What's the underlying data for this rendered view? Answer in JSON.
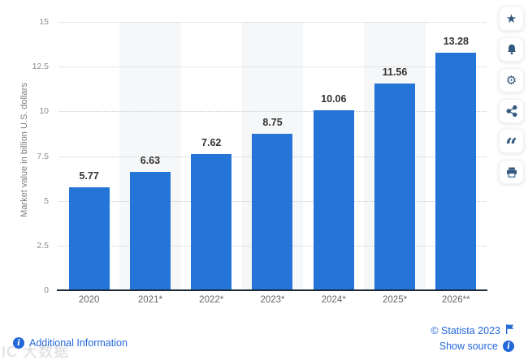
{
  "chart_data": {
    "type": "bar",
    "title": "",
    "xlabel": "",
    "ylabel": "Market value in billion U.S. dollars",
    "categories": [
      "2020",
      "2021*",
      "2022*",
      "2023*",
      "2024*",
      "2025*",
      "2026**"
    ],
    "values": [
      5.77,
      6.63,
      7.62,
      8.75,
      10.06,
      11.56,
      13.28
    ],
    "value_labels": [
      "5.77",
      "6.63",
      "7.62",
      "8.75",
      "10.06",
      "11.56",
      "13.28"
    ],
    "ylim": [
      0,
      15
    ],
    "yticks": [
      0,
      2.5,
      5,
      7.5,
      10,
      12.5,
      15
    ],
    "ytick_labels": [
      "0",
      "2.5",
      "5",
      "7.5",
      "10",
      "12.5",
      "15"
    ],
    "grid": "horizontal-dotted",
    "legend": "none",
    "banded_columns": [
      1,
      3,
      5
    ],
    "bar_color": "#2575d9",
    "band_color": "#f6f7f8",
    "label_color": "#333333",
    "axis_color": "#1b2a38"
  },
  "toolbar": {
    "buttons": [
      {
        "name": "favorite",
        "icon": "star-icon",
        "glyph": "★"
      },
      {
        "name": "notification",
        "icon": "bell-icon",
        "glyph": ""
      },
      {
        "name": "settings",
        "icon": "gear-icon",
        "glyph": "⚙"
      },
      {
        "name": "share",
        "icon": "share-icon",
        "glyph": ""
      },
      {
        "name": "cite",
        "icon": "quote-icon",
        "glyph": "“"
      },
      {
        "name": "print",
        "icon": "printer-icon",
        "glyph": ""
      }
    ]
  },
  "footer": {
    "additional_info_label": "Additional Information",
    "copyright": "© Statista 2023",
    "show_source_label": "Show source",
    "info_glyph": "i"
  },
  "watermark": "IC 大数据",
  "colors": {
    "bar_blue": "#2575d9",
    "link_blue": "#2368d9",
    "icon_navy": "#35587e",
    "tick_gray": "#8c8c8c",
    "xlabel_gray": "#666666"
  }
}
